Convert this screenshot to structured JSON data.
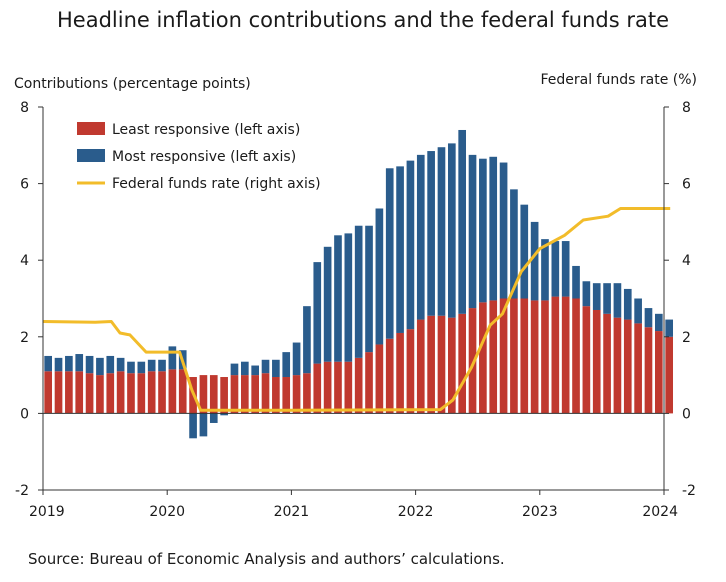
{
  "title": "Headline inflation contributions and the federal funds rate",
  "source": "Source: Bureau of Economic Analysis and authors’ calculations.",
  "chart_data": {
    "type": "bar",
    "subtype": "stacked bar with line on secondary axis",
    "left_axis_label": "Contributions (percentage points)",
    "right_axis_label": "Federal funds rate (%)",
    "ylim_left": [
      -2,
      8
    ],
    "ylim_right": [
      -2,
      8
    ],
    "y_ticks": [
      "-2",
      "0",
      "2",
      "4",
      "6",
      "8"
    ],
    "x_ticks": [
      "2019",
      "2020",
      "2021",
      "2022",
      "2023",
      "2024"
    ],
    "xlim": [
      2019,
      2024
    ],
    "x_start": "2019-01",
    "frequency": "monthly",
    "legend_position": "top-left",
    "grid": false,
    "series": [
      {
        "name": "Least responsive (left axis)",
        "kind": "bar",
        "color": "#c0392f",
        "values": [
          1.1,
          1.1,
          1.1,
          1.1,
          1.05,
          1.0,
          1.05,
          1.1,
          1.05,
          1.05,
          1.1,
          1.1,
          1.15,
          1.15,
          0.95,
          1.0,
          1.0,
          0.95,
          1.0,
          1.0,
          1.0,
          1.05,
          0.95,
          0.95,
          1.0,
          1.05,
          1.3,
          1.35,
          1.35,
          1.35,
          1.45,
          1.6,
          1.8,
          1.95,
          2.1,
          2.2,
          2.45,
          2.55,
          2.55,
          2.5,
          2.6,
          2.75,
          2.9,
          2.95,
          3.0,
          3.0,
          3.0,
          2.95,
          2.95,
          3.05,
          3.05,
          3.0,
          2.8,
          2.7,
          2.6,
          2.5,
          2.45,
          2.35,
          2.25,
          2.15,
          2.0
        ]
      },
      {
        "name": "Most responsive (left axis)",
        "kind": "bar",
        "color": "#2a5c8c",
        "values": [
          0.4,
          0.35,
          0.4,
          0.45,
          0.45,
          0.45,
          0.45,
          0.35,
          0.3,
          0.3,
          0.3,
          0.3,
          0.6,
          0.5,
          -0.65,
          -0.6,
          -0.25,
          -0.05,
          0.3,
          0.35,
          0.25,
          0.35,
          0.45,
          0.65,
          0.85,
          1.75,
          2.65,
          3.0,
          3.3,
          3.35,
          3.45,
          3.3,
          3.55,
          4.45,
          4.35,
          4.4,
          4.3,
          4.3,
          4.4,
          4.55,
          4.8,
          4.0,
          3.75,
          3.75,
          3.55,
          2.85,
          2.45,
          2.05,
          1.6,
          1.45,
          1.45,
          0.85,
          0.65,
          0.7,
          0.8,
          0.9,
          0.8,
          0.65,
          0.5,
          0.45,
          0.45
        ]
      },
      {
        "name": "Federal funds rate (right axis)",
        "kind": "line",
        "color": "#f2bc2a",
        "points": [
          [
            2019.0,
            2.4
          ],
          [
            2019.42,
            2.38
          ],
          [
            2019.55,
            2.4
          ],
          [
            2019.62,
            2.1
          ],
          [
            2019.7,
            2.05
          ],
          [
            2019.83,
            1.6
          ],
          [
            2020.1,
            1.6
          ],
          [
            2020.2,
            0.6
          ],
          [
            2020.27,
            0.08
          ],
          [
            2021.0,
            0.08
          ],
          [
            2022.2,
            0.1
          ],
          [
            2022.3,
            0.35
          ],
          [
            2022.45,
            1.2
          ],
          [
            2022.6,
            2.3
          ],
          [
            2022.7,
            2.6
          ],
          [
            2022.85,
            3.7
          ],
          [
            2023.0,
            4.3
          ],
          [
            2023.2,
            4.65
          ],
          [
            2023.35,
            5.05
          ],
          [
            2023.55,
            5.15
          ],
          [
            2023.65,
            5.35
          ],
          [
            2024.05,
            5.35
          ]
        ]
      }
    ]
  }
}
